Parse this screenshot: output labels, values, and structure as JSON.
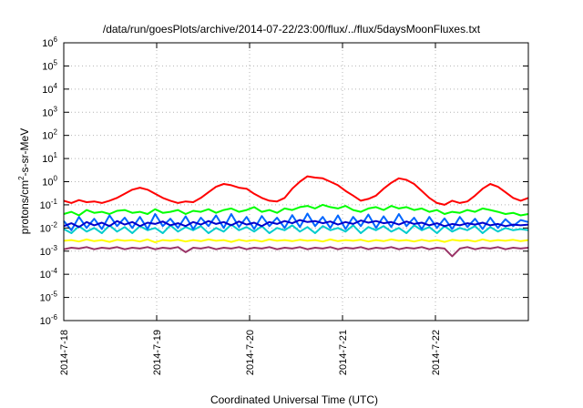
{
  "chart_data": {
    "type": "line",
    "title": "/data/run/goesPlots/archive/2014-07-22/23:00/flux/../flux/5daysMoonFluxes.txt",
    "xlabel": "Coordinated Universal Time (UTC)",
    "ylabel": {
      "pre": "protons/cm",
      "sup": "2",
      "post": "-s-sr-MeV"
    },
    "yscale": "log",
    "ylim": [
      1e-06,
      1000000.0
    ],
    "yticks": [
      {
        "base": "10",
        "exp": "6",
        "value": 1000000.0
      },
      {
        "base": "10",
        "exp": "5",
        "value": 100000.0
      },
      {
        "base": "10",
        "exp": "4",
        "value": 10000.0
      },
      {
        "base": "10",
        "exp": "3",
        "value": 1000.0
      },
      {
        "base": "10",
        "exp": "2",
        "value": 100.0
      },
      {
        "base": "10",
        "exp": "1",
        "value": 10.0
      },
      {
        "base": "10",
        "exp": "0",
        "value": 1.0
      },
      {
        "base": "10",
        "exp": "-1",
        "value": 0.1
      },
      {
        "base": "10",
        "exp": "-2",
        "value": 0.01
      },
      {
        "base": "10",
        "exp": "-3",
        "value": 0.001
      },
      {
        "base": "10",
        "exp": "-4",
        "value": 0.0001
      },
      {
        "base": "10",
        "exp": "-5",
        "value": 1e-05
      },
      {
        "base": "10",
        "exp": "-6",
        "value": 1e-06
      }
    ],
    "xlim": [
      "2014-07-18",
      "2014-07-23"
    ],
    "xticks": [
      "2014-7-18",
      "2014-7-19",
      "2014-7-20",
      "2014-7-21",
      "2014-7-22"
    ],
    "grid": true,
    "series": [
      {
        "color": "#ff0000",
        "values": [
          0.15,
          0.12,
          0.16,
          0.13,
          0.14,
          0.12,
          0.15,
          0.2,
          0.3,
          0.45,
          0.55,
          0.45,
          0.3,
          0.2,
          0.15,
          0.12,
          0.14,
          0.13,
          0.2,
          0.35,
          0.6,
          0.8,
          0.7,
          0.55,
          0.5,
          0.3,
          0.2,
          0.15,
          0.14,
          0.2,
          0.5,
          1.0,
          1.7,
          1.5,
          1.4,
          1.0,
          0.7,
          0.4,
          0.25,
          0.15,
          0.18,
          0.25,
          0.5,
          0.9,
          1.4,
          1.2,
          0.8,
          0.4,
          0.2,
          0.12,
          0.1,
          0.15,
          0.12,
          0.14,
          0.25,
          0.5,
          0.8,
          0.6,
          0.35,
          0.2,
          0.15,
          0.2
        ]
      },
      {
        "color": "#00ff00",
        "values": [
          0.04,
          0.05,
          0.035,
          0.06,
          0.045,
          0.05,
          0.04,
          0.055,
          0.06,
          0.045,
          0.05,
          0.04,
          0.065,
          0.045,
          0.05,
          0.06,
          0.04,
          0.055,
          0.05,
          0.065,
          0.045,
          0.06,
          0.07,
          0.05,
          0.06,
          0.08,
          0.05,
          0.06,
          0.045,
          0.07,
          0.06,
          0.08,
          0.09,
          0.07,
          0.1,
          0.08,
          0.07,
          0.09,
          0.06,
          0.05,
          0.07,
          0.08,
          0.06,
          0.09,
          0.07,
          0.08,
          0.06,
          0.07,
          0.05,
          0.06,
          0.04,
          0.05,
          0.045,
          0.06,
          0.05,
          0.07,
          0.06,
          0.05,
          0.04,
          0.045,
          0.035,
          0.04
        ]
      },
      {
        "color": "#00cccc",
        "values": [
          0.009,
          0.006,
          0.012,
          0.007,
          0.01,
          0.006,
          0.013,
          0.007,
          0.011,
          0.006,
          0.012,
          0.008,
          0.01,
          0.006,
          0.013,
          0.007,
          0.011,
          0.008,
          0.012,
          0.006,
          0.01,
          0.007,
          0.014,
          0.008,
          0.011,
          0.007,
          0.012,
          0.006,
          0.01,
          0.008,
          0.013,
          0.007,
          0.011,
          0.006,
          0.012,
          0.008,
          0.01,
          0.007,
          0.013,
          0.006,
          0.011,
          0.008,
          0.012,
          0.007,
          0.01,
          0.006,
          0.013,
          0.008,
          0.011,
          0.006,
          0.012,
          0.007,
          0.01,
          0.008,
          0.012,
          0.006,
          0.011,
          0.007,
          0.01,
          0.008,
          0.009,
          0.008
        ]
      },
      {
        "color": "#0066ff",
        "values": [
          0.02,
          0.008,
          0.03,
          0.01,
          0.025,
          0.009,
          0.035,
          0.012,
          0.028,
          0.01,
          0.03,
          0.009,
          0.04,
          0.012,
          0.025,
          0.01,
          0.032,
          0.009,
          0.028,
          0.012,
          0.035,
          0.01,
          0.04,
          0.011,
          0.03,
          0.009,
          0.033,
          0.012,
          0.028,
          0.01,
          0.036,
          0.011,
          0.042,
          0.012,
          0.03,
          0.01,
          0.035,
          0.009,
          0.03,
          0.012,
          0.038,
          0.01,
          0.032,
          0.011,
          0.04,
          0.012,
          0.028,
          0.009,
          0.03,
          0.01,
          0.026,
          0.009,
          0.03,
          0.011,
          0.025,
          0.009,
          0.028,
          0.01,
          0.024,
          0.012,
          0.022,
          0.018
        ]
      },
      {
        "color": "#0000cc",
        "values": [
          0.012,
          0.016,
          0.011,
          0.018,
          0.013,
          0.017,
          0.012,
          0.02,
          0.014,
          0.018,
          0.012,
          0.017,
          0.015,
          0.019,
          0.013,
          0.016,
          0.012,
          0.018,
          0.014,
          0.02,
          0.015,
          0.018,
          0.013,
          0.019,
          0.014,
          0.017,
          0.012,
          0.018,
          0.015,
          0.02,
          0.016,
          0.022,
          0.018,
          0.02,
          0.016,
          0.019,
          0.014,
          0.018,
          0.015,
          0.021,
          0.017,
          0.02,
          0.016,
          0.018,
          0.014,
          0.019,
          0.015,
          0.017,
          0.013,
          0.016,
          0.012,
          0.015,
          0.013,
          0.016,
          0.014,
          0.017,
          0.013,
          0.015,
          0.012,
          0.014,
          0.013,
          0.014
        ]
      },
      {
        "color": "#ffff00",
        "values": [
          0.0028,
          0.003,
          0.0026,
          0.0032,
          0.0027,
          0.003,
          0.0025,
          0.0031,
          0.0028,
          0.003,
          0.0026,
          0.0032,
          0.0024,
          0.003,
          0.0028,
          0.0031,
          0.0026,
          0.003,
          0.0027,
          0.0032,
          0.0028,
          0.003,
          0.0025,
          0.0031,
          0.0027,
          0.003,
          0.0026,
          0.0032,
          0.0028,
          0.003,
          0.0027,
          0.0031,
          0.0028,
          0.003,
          0.0026,
          0.0032,
          0.0027,
          0.003,
          0.0028,
          0.0031,
          0.0026,
          0.003,
          0.0027,
          0.0032,
          0.0028,
          0.003,
          0.0026,
          0.0031,
          0.0027,
          0.003,
          0.0025,
          0.0031,
          0.0028,
          0.003,
          0.0026,
          0.0032,
          0.0027,
          0.003,
          0.0028,
          0.0031,
          0.0027,
          0.003
        ]
      },
      {
        "color": "#993366",
        "values": [
          0.0012,
          0.0014,
          0.0013,
          0.0015,
          0.0012,
          0.0014,
          0.0013,
          0.0015,
          0.0012,
          0.0014,
          0.0013,
          0.0015,
          0.0012,
          0.0014,
          0.0013,
          0.0015,
          0.0009,
          0.0014,
          0.0013,
          0.0015,
          0.0012,
          0.0014,
          0.0013,
          0.0015,
          0.0012,
          0.0014,
          0.0013,
          0.0015,
          0.0012,
          0.0014,
          0.0013,
          0.0015,
          0.0012,
          0.0014,
          0.0013,
          0.0015,
          0.0012,
          0.0014,
          0.0013,
          0.0015,
          0.0012,
          0.0014,
          0.0013,
          0.0015,
          0.0012,
          0.0014,
          0.0013,
          0.0015,
          0.0012,
          0.0014,
          0.0013,
          0.0006,
          0.0013,
          0.0015,
          0.0012,
          0.0014,
          0.0013,
          0.0015,
          0.0012,
          0.0014,
          0.0013,
          0.0014
        ]
      }
    ]
  }
}
